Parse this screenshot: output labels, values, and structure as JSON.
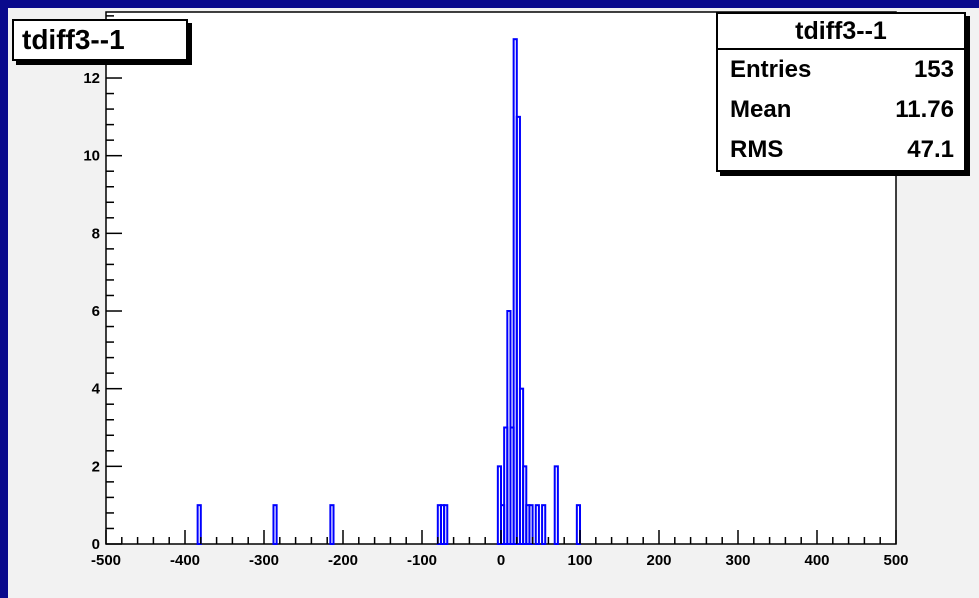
{
  "chart_data": {
    "type": "bar",
    "title": "tdiff3--1",
    "xlabel": "",
    "ylabel": "",
    "xlim": [
      -500,
      500
    ],
    "ylim": [
      0,
      13.7
    ],
    "x_ticks": [
      "-500",
      "-400",
      "-300",
      "-200",
      "-100",
      "0",
      "100",
      "200",
      "300",
      "400",
      "500"
    ],
    "y_ticks": [
      "0",
      "2",
      "4",
      "6",
      "8",
      "10",
      "12"
    ],
    "bin_width": 4,
    "series": [
      {
        "color": "#0000ff",
        "bins": [
          {
            "x": -382,
            "y": 1
          },
          {
            "x": -286,
            "y": 1
          },
          {
            "x": -214,
            "y": 1
          },
          {
            "x": -78,
            "y": 1
          },
          {
            "x": -74,
            "y": 1
          },
          {
            "x": -70,
            "y": 1
          },
          {
            "x": -2,
            "y": 2
          },
          {
            "x": 2,
            "y": 1
          },
          {
            "x": 6,
            "y": 3
          },
          {
            "x": 10,
            "y": 6
          },
          {
            "x": 14,
            "y": 3
          },
          {
            "x": 18,
            "y": 13
          },
          {
            "x": 22,
            "y": 11
          },
          {
            "x": 26,
            "y": 4
          },
          {
            "x": 30,
            "y": 2
          },
          {
            "x": 34,
            "y": 1
          },
          {
            "x": 38,
            "y": 1
          },
          {
            "x": 46,
            "y": 1
          },
          {
            "x": 54,
            "y": 1
          },
          {
            "x": 70,
            "y": 2
          },
          {
            "x": 98,
            "y": 1
          }
        ]
      }
    ]
  },
  "stats": {
    "title": "tdiff3--1",
    "rows": [
      {
        "label": "Entries",
        "value": "153"
      },
      {
        "label": "Mean",
        "value": "11.76"
      },
      {
        "label": "RMS",
        "value": "47.1"
      }
    ]
  }
}
